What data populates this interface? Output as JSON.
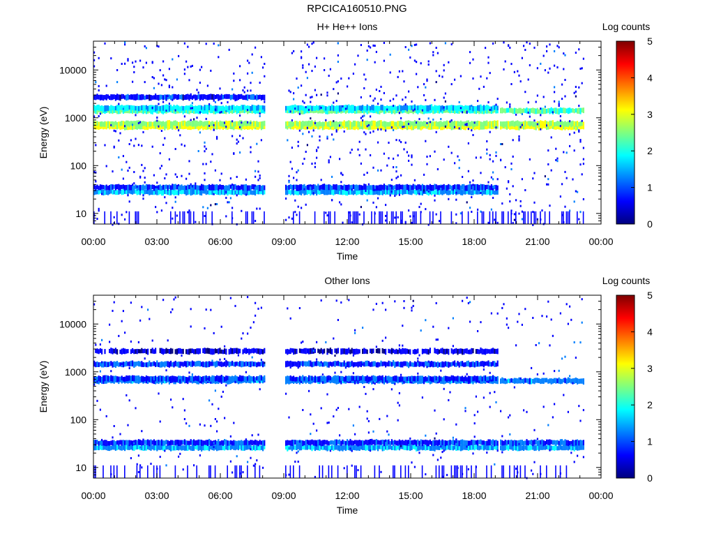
{
  "figure": {
    "title": "RPCICA160510.PNG"
  },
  "colorbar_label": "Log counts",
  "colorscale": [
    "#00007f",
    "#0000ff",
    "#007fff",
    "#00ffff",
    "#7fff7f",
    "#ffff00",
    "#ff7f00",
    "#ff0000",
    "#7f0000"
  ],
  "chart_data": [
    {
      "type": "heatmap",
      "title": "H+ He++ Ions",
      "xlabel": "Time",
      "ylabel": "Energy (eV)",
      "x_ticks": [
        "00:00",
        "03:00",
        "06:00",
        "09:00",
        "12:00",
        "15:00",
        "18:00",
        "21:00",
        "00:00"
      ],
      "x_range_hours": [
        0,
        24
      ],
      "y_scale": "log",
      "y_range_eV": [
        6,
        40000
      ],
      "y_ticks": [
        {
          "value": 10,
          "label": "10"
        },
        {
          "value": 100,
          "label": "100"
        },
        {
          "value": 1000,
          "label": "1000"
        },
        {
          "value": 10000,
          "label": "10000"
        }
      ],
      "colorbar": {
        "label": "Log counts",
        "range": [
          0,
          5
        ],
        "ticks": [
          "0",
          "1",
          "2",
          "3",
          "4",
          "5"
        ]
      },
      "data_gaps_hours": [
        [
          8.1,
          9.0
        ],
        [
          19.1,
          19.2
        ]
      ],
      "data_end_hour": 23.2,
      "bands": [
        {
          "energy_eV": 28,
          "log_counts": 1.5,
          "hours": [
            [
              0,
              19.1
            ]
          ]
        },
        {
          "energy_eV": 35,
          "log_counts": 0.9,
          "hours": [
            [
              0,
              19.1
            ]
          ]
        },
        {
          "energy_eV": 650,
          "log_counts": 3.0,
          "hours": [
            [
              0,
              19.1
            ],
            [
              19.2,
              23.2
            ]
          ]
        },
        {
          "energy_eV": 750,
          "log_counts": 2.6,
          "hours": [
            [
              0,
              19.1
            ],
            [
              19.2,
              23.2
            ]
          ]
        },
        {
          "energy_eV": 1400,
          "log_counts": 2.2,
          "hours": [
            [
              0,
              19.1
            ],
            [
              19.2,
              23.2
            ]
          ]
        },
        {
          "energy_eV": 1600,
          "log_counts": 1.7,
          "hours": [
            [
              0,
              19.1
            ]
          ]
        },
        {
          "energy_eV": 2700,
          "log_counts": 0.7,
          "hours": [
            [
              0,
              8.1
            ]
          ]
        }
      ],
      "background_log_counts": 0.3
    },
    {
      "type": "heatmap",
      "title": "Other Ions",
      "xlabel": "Time",
      "ylabel": "Energy (eV)",
      "x_ticks": [
        "00:00",
        "03:00",
        "06:00",
        "09:00",
        "12:00",
        "15:00",
        "18:00",
        "21:00",
        "00:00"
      ],
      "x_range_hours": [
        0,
        24
      ],
      "y_scale": "log",
      "y_range_eV": [
        6,
        40000
      ],
      "y_ticks": [
        {
          "value": 10,
          "label": "10"
        },
        {
          "value": 100,
          "label": "100"
        },
        {
          "value": 1000,
          "label": "1000"
        },
        {
          "value": 10000,
          "label": "10000"
        }
      ],
      "colorbar": {
        "label": "Log counts",
        "range": [
          0,
          5
        ],
        "ticks": [
          "0",
          "1",
          "2",
          "3",
          "4",
          "5"
        ]
      },
      "data_gaps_hours": [
        [
          8.1,
          9.0
        ],
        [
          19.1,
          19.2
        ]
      ],
      "data_end_hour": 23.2,
      "bands": [
        {
          "energy_eV": 26,
          "log_counts": 1.4,
          "hours": [
            [
              0,
              19.1
            ],
            [
              19.2,
              23.2
            ]
          ]
        },
        {
          "energy_eV": 33,
          "log_counts": 0.8,
          "hours": [
            [
              0,
              19.1
            ],
            [
              19.2,
              23.2
            ]
          ]
        },
        {
          "energy_eV": 650,
          "log_counts": 1.2,
          "hours": [
            [
              0,
              19.1
            ],
            [
              19.2,
              23.2
            ]
          ]
        },
        {
          "energy_eV": 720,
          "log_counts": 0.9,
          "hours": [
            [
              0,
              8.1
            ],
            [
              9.0,
              19.1
            ]
          ]
        },
        {
          "energy_eV": 1450,
          "log_counts": 0.9,
          "hours": [
            [
              0,
              8.1
            ],
            [
              9.0,
              19.1
            ]
          ]
        },
        {
          "energy_eV": 2700,
          "log_counts": 0.4,
          "hours": [
            [
              0,
              8.1
            ],
            [
              9.0,
              19.1
            ]
          ]
        }
      ],
      "background_log_counts": 0.15
    }
  ]
}
